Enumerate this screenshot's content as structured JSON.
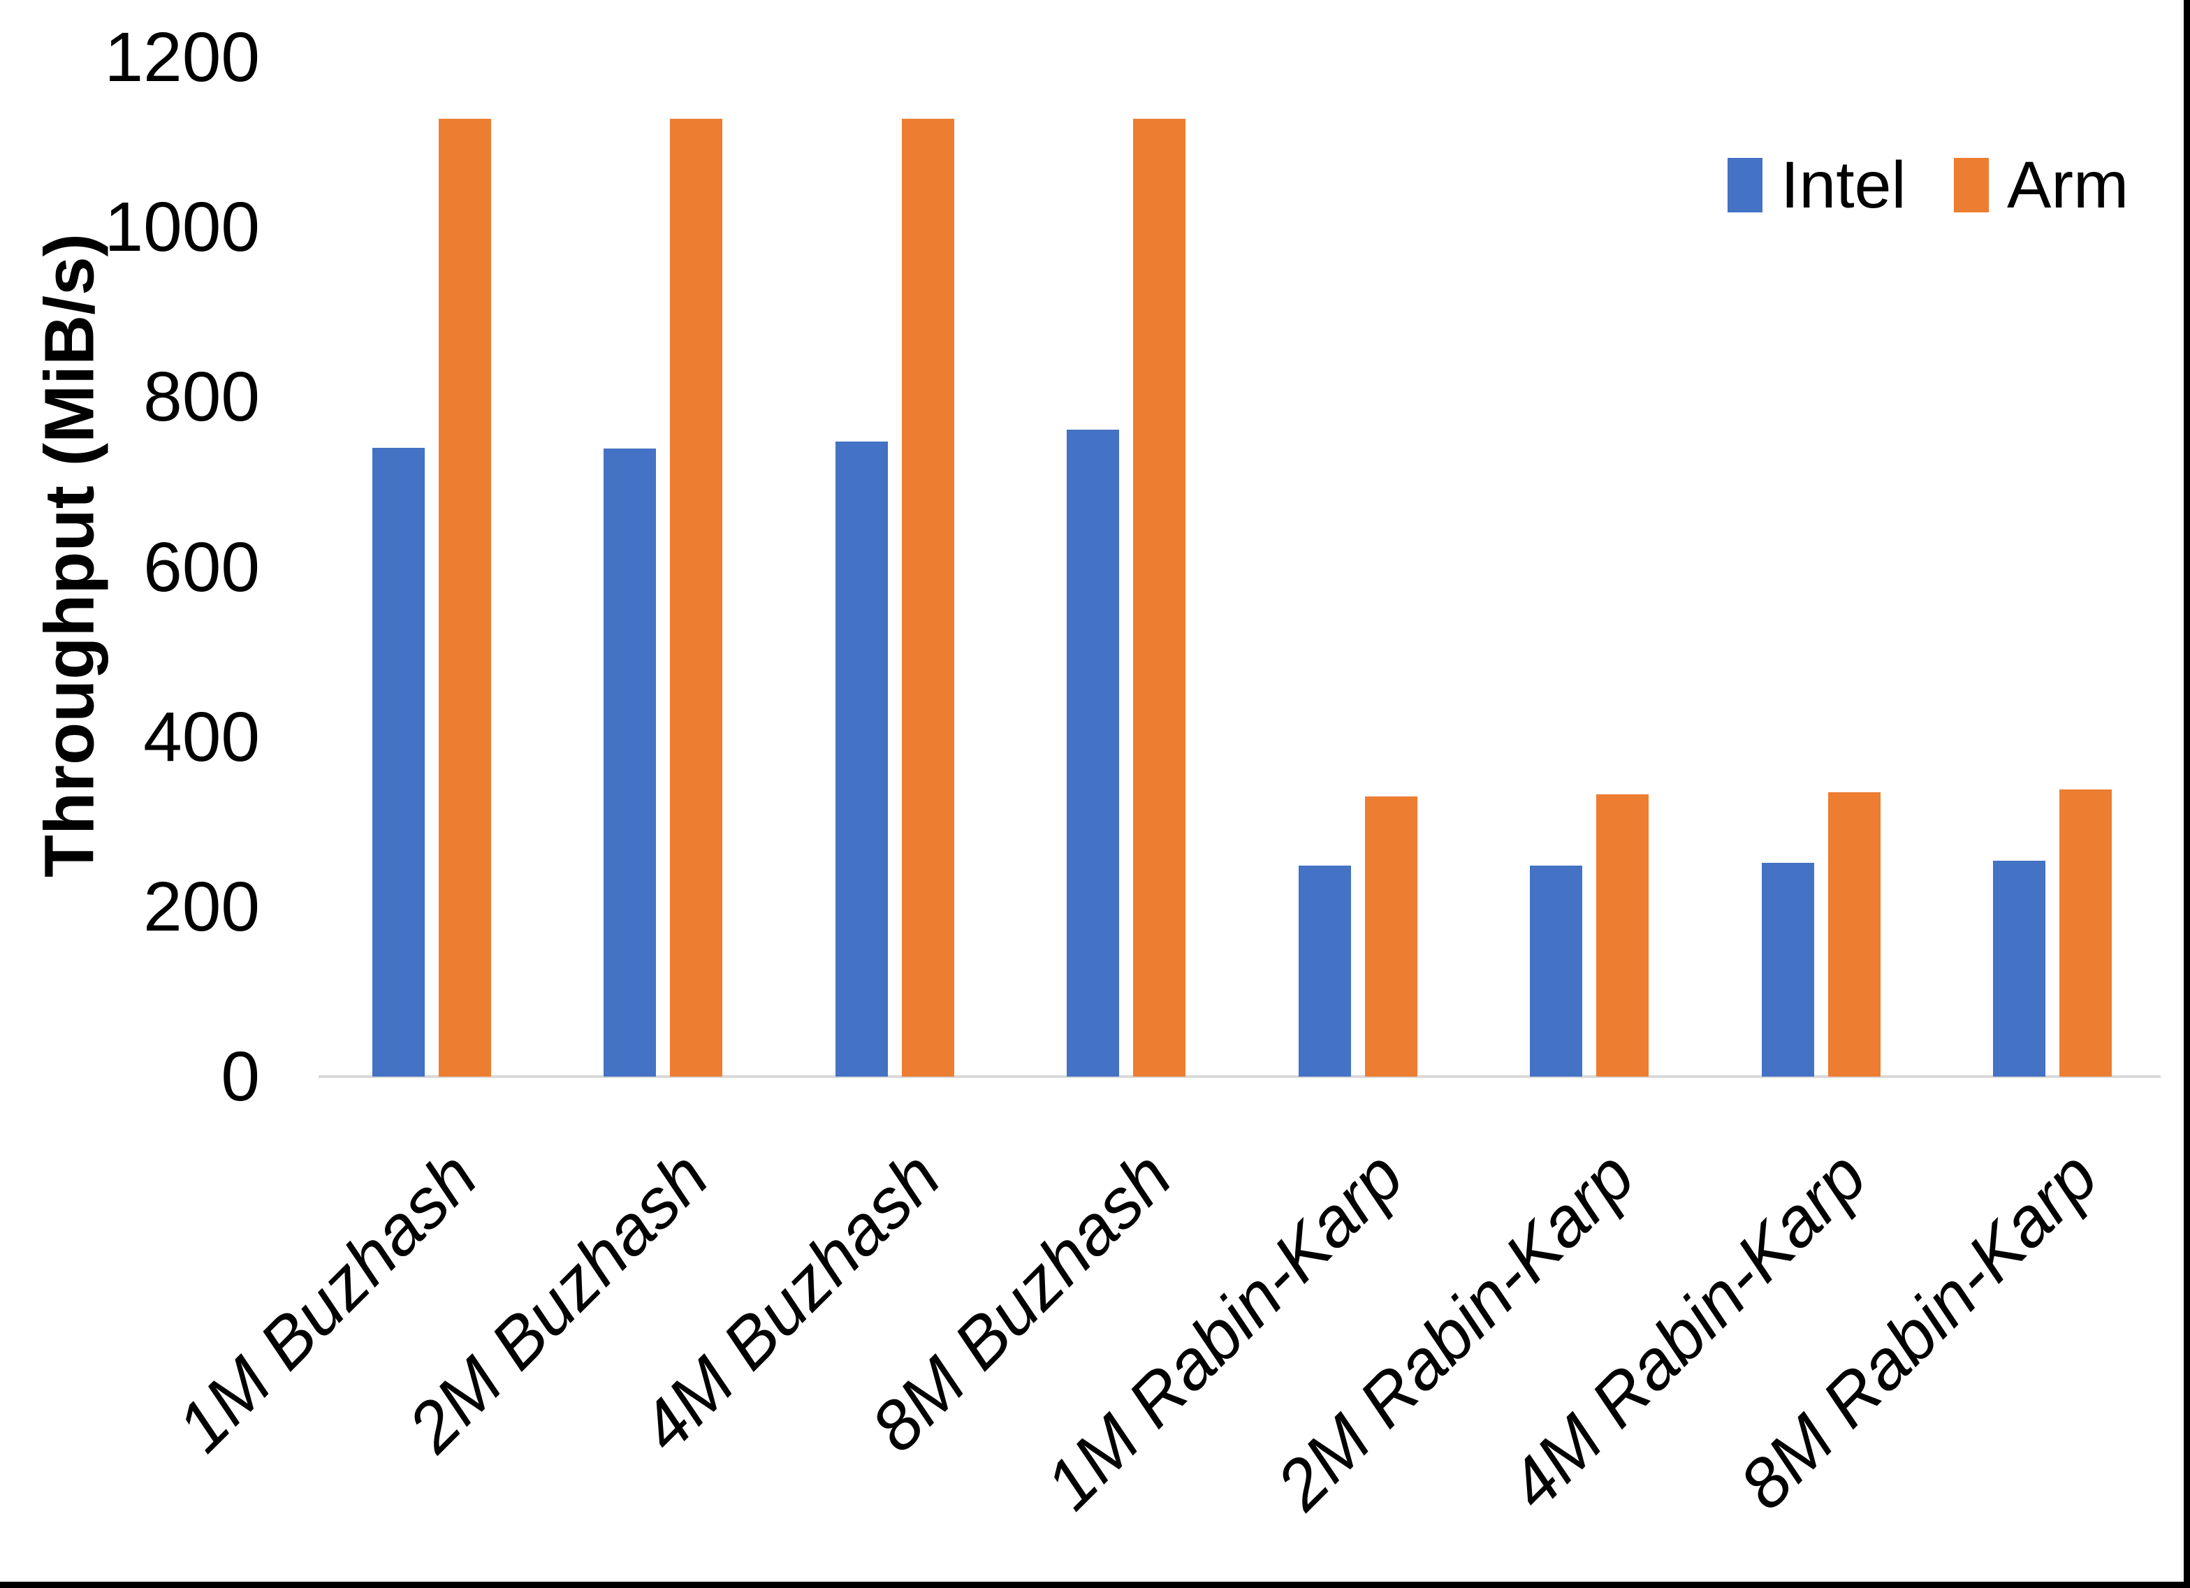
{
  "chart_data": {
    "type": "bar",
    "categories": [
      "1M Buzhash",
      "2M Buzhash",
      "4M Buzhash",
      "8M Buzhash",
      "1M Rabin-Karp",
      "2M Rabin-Karp",
      "4M Rabin-Karp",
      "8M Rabin-Karp"
    ],
    "series": [
      {
        "name": "Intel",
        "color": "#4472C4",
        "values": [
          740,
          739,
          748,
          762,
          248,
          248,
          252,
          254
        ]
      },
      {
        "name": "Arm",
        "color": "#ED7D31",
        "values": [
          1128,
          1128,
          1128,
          1128,
          330,
          332,
          335,
          338
        ]
      }
    ],
    "title": "",
    "xlabel": "",
    "ylabel": "Throughput (MiB/s)",
    "ylim": [
      0,
      1200
    ],
    "yticks": [
      0,
      200,
      400,
      600,
      800,
      1000,
      1200
    ],
    "grid": false,
    "legend_position": "top-right",
    "category_label_style": "italic, rotated -45deg",
    "axis_line_color": "#D9D9D9"
  }
}
